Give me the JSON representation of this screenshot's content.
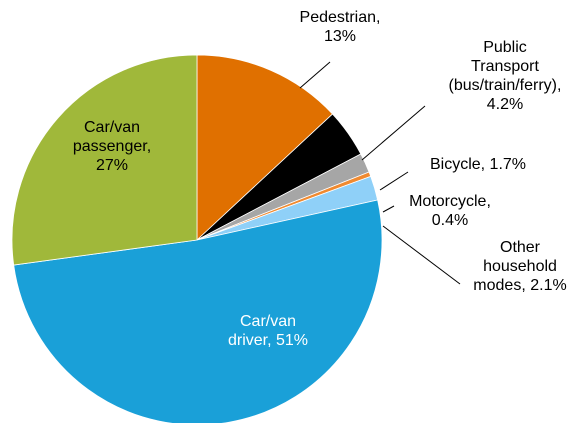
{
  "chart_data": {
    "type": "pie",
    "categories": [
      "Pedestrian,",
      "Public\nTransport\n(bus/train/ferry),",
      "Bicycle,",
      "Motorcycle,",
      "Other\nhousehold\nmodes,",
      "Car/van\ndriver,",
      "Car/van\npassenger,"
    ],
    "values": [
      13,
      4.2,
      1.7,
      0.4,
      2.1,
      51,
      27
    ],
    "value_labels": [
      "13%",
      "4.2%",
      "1.7%",
      "0.4%",
      "2.1%",
      "51%",
      "27%"
    ],
    "colors": [
      "#e07000",
      "#000000",
      "#a6a6a6",
      "#f08a30",
      "#8fd0f8",
      "#1aa0d8",
      "#a0b83a"
    ]
  }
}
